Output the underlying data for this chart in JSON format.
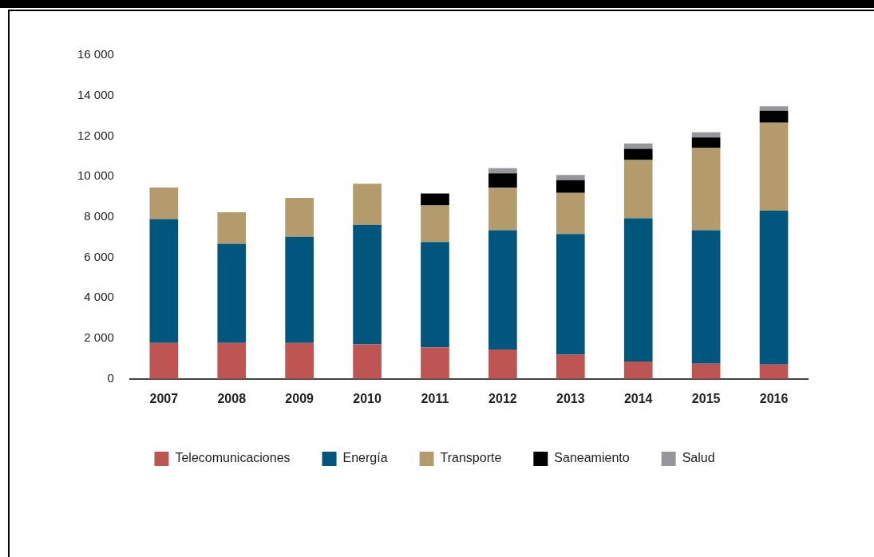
{
  "chart_data": {
    "type": "bar",
    "stacked": true,
    "categories": [
      "2007",
      "2008",
      "2009",
      "2010",
      "2011",
      "2012",
      "2013",
      "2014",
      "2015",
      "2016"
    ],
    "series": [
      {
        "name": "Telecomunicaciones",
        "color": "#be5552",
        "values": [
          1780,
          1780,
          1780,
          1710,
          1560,
          1450,
          1190,
          860,
          750,
          710
        ]
      },
      {
        "name": "Energía",
        "color": "#00567c",
        "values": [
          6120,
          4900,
          5240,
          5900,
          5200,
          5900,
          5970,
          7080,
          6600,
          7600
        ]
      },
      {
        "name": "Transporte",
        "color": "#b39b6b",
        "values": [
          1550,
          1550,
          1920,
          2030,
          1810,
          2100,
          2030,
          2880,
          4060,
          4350
        ]
      },
      {
        "name": "Saneamiento",
        "color": "#000000",
        "values": [
          null,
          null,
          null,
          null,
          590,
          700,
          630,
          550,
          520,
          590
        ]
      },
      {
        "name": "Salud",
        "color": "#96979b",
        "values": [
          null,
          null,
          null,
          null,
          null,
          260,
          260,
          260,
          260,
          220
        ]
      }
    ],
    "ylim": [
      0,
      16000
    ],
    "yticks": [
      {
        "value": 0,
        "label": "0"
      },
      {
        "value": 2000,
        "label": "2 000"
      },
      {
        "value": 4000,
        "label": "4 000"
      },
      {
        "value": 6000,
        "label": "6 000"
      },
      {
        "value": 8000,
        "label": "8 000"
      },
      {
        "value": 10000,
        "label": "10 000"
      },
      {
        "value": 12000,
        "label": "12 000"
      },
      {
        "value": 14000,
        "label": "14 000"
      },
      {
        "value": 16000,
        "label": "16 000"
      }
    ],
    "grid": false,
    "legend": "bottom"
  }
}
